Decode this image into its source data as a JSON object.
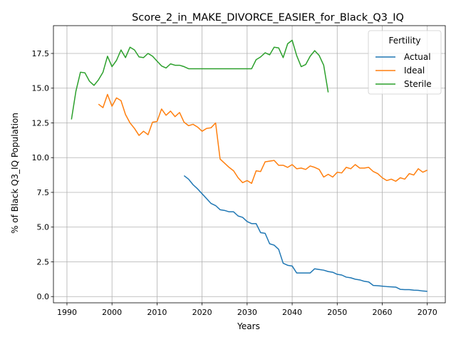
{
  "chart_data": {
    "type": "line",
    "title": "Score_2_in_MAKE_DIVORCE_EASIER_for_Black_Q3_IQ",
    "xlabel": "Years",
    "ylabel": "% of Black Q3_IQ Population",
    "xlim": [
      1987,
      2074
    ],
    "ylim": [
      -0.45,
      19.5
    ],
    "x_ticks": [
      1990,
      2000,
      2010,
      2020,
      2030,
      2040,
      2050,
      2060,
      2070
    ],
    "y_ticks": [
      0.0,
      2.5,
      5.0,
      7.5,
      10.0,
      12.5,
      15.0,
      17.5
    ],
    "x_tick_labels": [
      "1990",
      "2000",
      "2010",
      "2020",
      "2030",
      "2040",
      "2050",
      "2060",
      "2070"
    ],
    "y_tick_labels": [
      "0.0",
      "2.5",
      "5.0",
      "7.5",
      "10.0",
      "12.5",
      "15.0",
      "17.5"
    ],
    "grid": true,
    "legend": {
      "title": "Fertility",
      "position": "top-right"
    },
    "series": [
      {
        "name": "Actual",
        "color": "#1f77b4",
        "x": [
          2016,
          2017,
          2018,
          2019,
          2020,
          2021,
          2022,
          2023,
          2024,
          2025,
          2026,
          2027,
          2028,
          2029,
          2030,
          2031,
          2032,
          2033,
          2034,
          2035,
          2036,
          2037,
          2038,
          2039,
          2040,
          2041,
          2042,
          2043,
          2044,
          2045,
          2046,
          2047,
          2048,
          2049,
          2050,
          2051,
          2052,
          2053,
          2054,
          2055,
          2056,
          2057,
          2058,
          2059,
          2060,
          2061,
          2062,
          2063,
          2064,
          2065,
          2066,
          2067,
          2068,
          2069,
          2070
        ],
        "y": [
          8.7,
          8.45,
          8.05,
          7.75,
          7.4,
          7.05,
          6.7,
          6.55,
          6.25,
          6.2,
          6.1,
          6.1,
          5.8,
          5.7,
          5.4,
          5.25,
          5.25,
          4.6,
          4.55,
          3.8,
          3.7,
          3.4,
          2.4,
          2.25,
          2.2,
          1.7,
          1.7,
          1.7,
          1.7,
          2.0,
          1.95,
          1.9,
          1.8,
          1.75,
          1.6,
          1.55,
          1.4,
          1.35,
          1.25,
          1.2,
          1.1,
          1.05,
          0.8,
          0.78,
          0.75,
          0.72,
          0.7,
          0.68,
          0.52,
          0.5,
          0.5,
          0.46,
          0.45,
          0.4,
          0.38
        ]
      },
      {
        "name": "Ideal",
        "color": "#ff7f0e",
        "x": [
          1997,
          1998,
          1999,
          2000,
          2001,
          2002,
          2003,
          2004,
          2005,
          2006,
          2007,
          2008,
          2009,
          2010,
          2011,
          2012,
          2013,
          2014,
          2015,
          2016,
          2017,
          2018,
          2019,
          2020,
          2021,
          2022,
          2023,
          2024,
          2025,
          2026,
          2027,
          2028,
          2029,
          2030,
          2031,
          2032,
          2033,
          2034,
          2035,
          2036,
          2037,
          2038,
          2039,
          2040,
          2041,
          2042,
          2043,
          2044,
          2045,
          2046,
          2047,
          2048,
          2049,
          2050,
          2051,
          2052,
          2053,
          2054,
          2055,
          2056,
          2057,
          2058,
          2059,
          2060,
          2061,
          2062,
          2063,
          2064,
          2065,
          2066,
          2067,
          2068,
          2069,
          2070
        ],
        "y": [
          13.85,
          13.6,
          14.55,
          13.7,
          14.3,
          14.1,
          13.1,
          12.5,
          12.1,
          11.6,
          11.9,
          11.65,
          12.55,
          12.6,
          13.5,
          13.05,
          13.35,
          12.95,
          13.25,
          12.55,
          12.3,
          12.4,
          12.2,
          11.9,
          12.1,
          12.15,
          12.5,
          9.9,
          9.6,
          9.3,
          9.05,
          8.55,
          8.2,
          8.35,
          8.15,
          9.05,
          9.0,
          9.7,
          9.75,
          9.8,
          9.45,
          9.45,
          9.3,
          9.5,
          9.2,
          9.25,
          9.15,
          9.4,
          9.3,
          9.15,
          8.6,
          8.8,
          8.6,
          8.95,
          8.9,
          9.3,
          9.2,
          9.5,
          9.25,
          9.25,
          9.3,
          9.0,
          8.85,
          8.55,
          8.35,
          8.45,
          8.3,
          8.55,
          8.45,
          8.85,
          8.75,
          9.2,
          8.95,
          9.1
        ]
      },
      {
        "name": "Sterile",
        "color": "#2ca02c",
        "x": [
          1991,
          1992,
          1993,
          1994,
          1995,
          1996,
          1997,
          1998,
          1999,
          2000,
          2001,
          2002,
          2003,
          2004,
          2005,
          2006,
          2007,
          2008,
          2009,
          2010,
          2011,
          2012,
          2013,
          2014,
          2015,
          2016,
          2017,
          2018,
          2019,
          2020,
          2021,
          2022,
          2023,
          2024,
          2025,
          2026,
          2027,
          2028,
          2029,
          2030,
          2031,
          2032,
          2033,
          2034,
          2035,
          2036,
          2037,
          2038,
          2039,
          2040,
          2041,
          2042,
          2043,
          2044,
          2045,
          2046,
          2047,
          2048
        ],
        "y": [
          12.75,
          14.8,
          16.15,
          16.1,
          15.5,
          15.2,
          15.6,
          16.15,
          17.3,
          16.55,
          17.0,
          17.75,
          17.2,
          17.95,
          17.75,
          17.25,
          17.2,
          17.5,
          17.3,
          16.95,
          16.6,
          16.45,
          16.75,
          16.65,
          16.65,
          16.55,
          16.4,
          16.4,
          16.4,
          16.4,
          16.4,
          16.4,
          16.4,
          16.4,
          16.4,
          16.4,
          16.4,
          16.4,
          16.4,
          16.4,
          16.4,
          17.05,
          17.25,
          17.55,
          17.4,
          17.95,
          17.9,
          17.2,
          18.2,
          18.45,
          17.35,
          16.55,
          16.7,
          17.3,
          17.7,
          17.35,
          16.65,
          14.7
        ]
      }
    ]
  }
}
